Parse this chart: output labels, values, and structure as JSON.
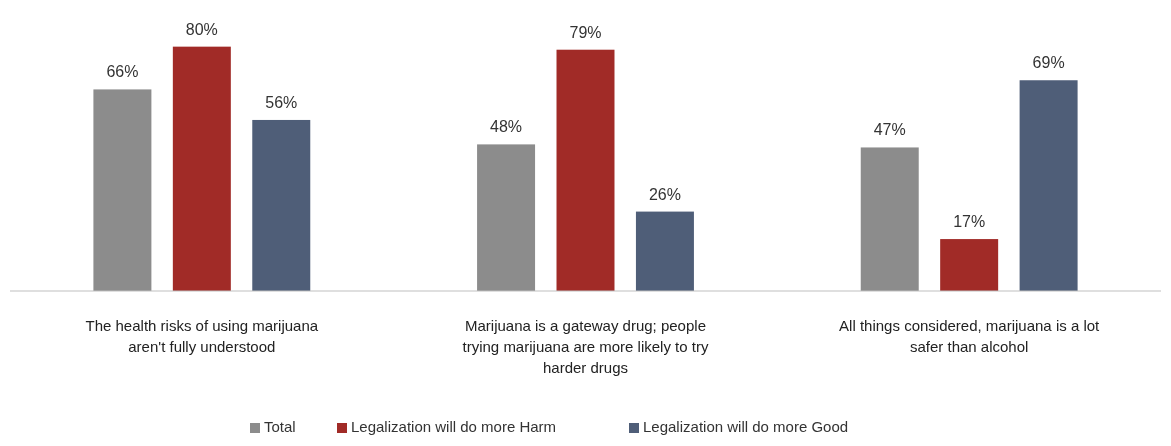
{
  "chart_data": {
    "type": "bar",
    "categories": [
      "The health risks of using marijuana aren't fully understood",
      "Marijuana is a gateway drug; people trying marijuana are more likely to try harder drugs",
      "All things considered, marijuana is a lot safer than alcohol"
    ],
    "series": [
      {
        "name": "Total",
        "color": "#8c8c8c",
        "values": [
          66,
          48,
          47
        ],
        "value_labels": [
          "66%",
          "48%",
          "47%"
        ]
      },
      {
        "name": "Legalization will do more Harm",
        "color": "#a12b27",
        "values": [
          80,
          79,
          17
        ],
        "value_labels": [
          "80%",
          "79%",
          "17%"
        ]
      },
      {
        "name": "Legalization will do more Good",
        "color": "#4f5e78",
        "values": [
          56,
          26,
          69
        ],
        "value_labels": [
          "56%",
          "26%",
          "69%"
        ]
      }
    ],
    "legend": "bottom",
    "grid": false
  }
}
